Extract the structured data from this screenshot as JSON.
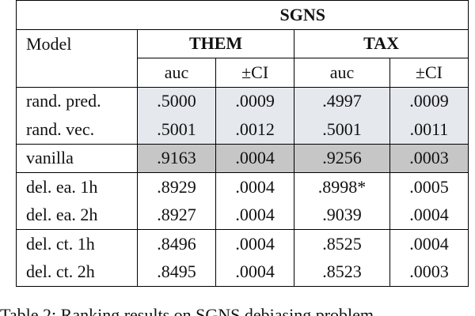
{
  "table": {
    "title": "SGNS",
    "model_header": "Model",
    "groups": [
      "THEM",
      "TAX"
    ],
    "subheaders": [
      "auc",
      "±CI",
      "auc",
      "±CI"
    ],
    "rows": [
      [
        "rand. pred.",
        ".5000",
        ".0009",
        ".4997",
        ".0009"
      ],
      [
        "rand. vec.",
        ".5001",
        ".0012",
        ".5001",
        ".0011"
      ],
      [
        "vanilla",
        ".9163",
        ".0004",
        ".9256",
        ".0003"
      ],
      [
        "del. ea. 1h",
        ".8929",
        ".0004",
        ".8998*",
        ".0005"
      ],
      [
        "del. ea. 2h",
        ".8927",
        ".0004",
        ".9039",
        ".0004"
      ],
      [
        "del. ct. 1h",
        ".8496",
        ".0004",
        ".8525",
        ".0004"
      ],
      [
        "del. ct. 2h",
        ".8495",
        ".0004",
        ".8523",
        ".0003"
      ]
    ]
  },
  "caption": "Table 2: Ranking results on SGNS debiasing problem"
}
